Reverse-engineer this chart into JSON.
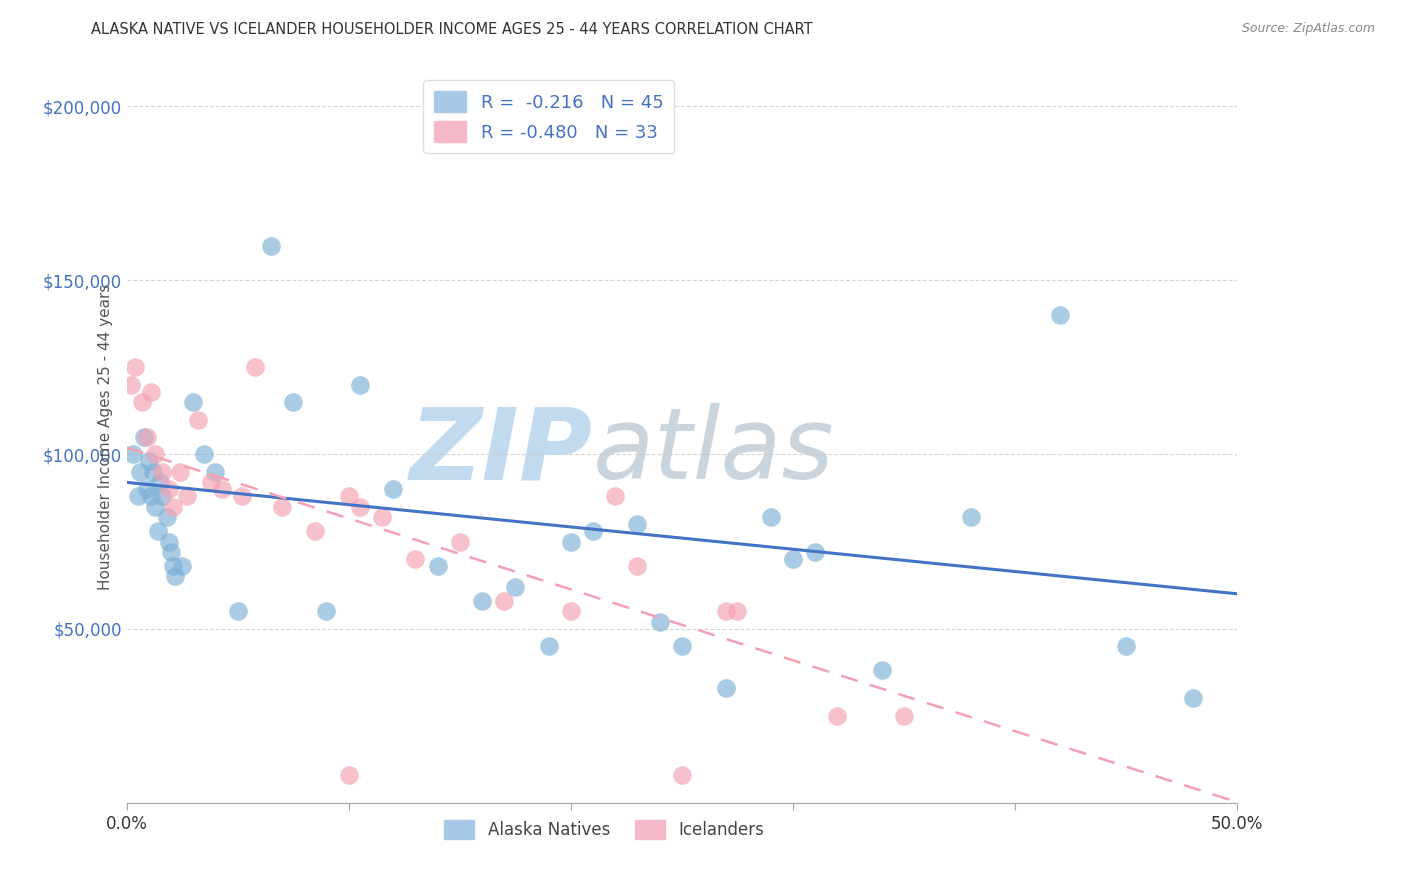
{
  "title": "ALASKA NATIVE VS ICELANDER HOUSEHOLDER INCOME AGES 25 - 44 YEARS CORRELATION CHART",
  "source": "Source: ZipAtlas.com",
  "ylabel": "Householder Income Ages 25 - 44 years",
  "xlim": [
    0,
    50
  ],
  "ylim": [
    0,
    210000
  ],
  "yticks": [
    0,
    50000,
    100000,
    150000,
    200000
  ],
  "xticks": [
    0,
    10,
    20,
    30,
    40,
    50
  ],
  "xtick_labels": [
    "0.0%",
    "",
    "",
    "",
    "",
    "50.0%"
  ],
  "alaska_natives": {
    "color": "#7bafd4",
    "x": [
      0.3,
      0.5,
      0.6,
      0.8,
      0.9,
      1.0,
      1.1,
      1.2,
      1.3,
      1.4,
      1.5,
      1.6,
      1.8,
      1.9,
      2.0,
      2.1,
      2.2,
      2.5,
      3.0,
      3.5,
      4.0,
      5.0,
      6.5,
      7.5,
      9.0,
      10.5,
      12.0,
      14.0,
      16.0,
      17.5,
      19.0,
      21.0,
      23.0,
      25.0,
      27.0,
      29.0,
      31.0,
      34.0,
      38.0,
      42.0,
      45.0,
      48.0,
      20.0,
      24.0,
      30.0
    ],
    "y": [
      100000,
      88000,
      95000,
      105000,
      90000,
      98000,
      88000,
      95000,
      85000,
      78000,
      92000,
      88000,
      82000,
      75000,
      72000,
      68000,
      65000,
      68000,
      115000,
      100000,
      95000,
      55000,
      160000,
      115000,
      55000,
      120000,
      90000,
      68000,
      58000,
      62000,
      45000,
      78000,
      80000,
      45000,
      33000,
      82000,
      72000,
      38000,
      82000,
      140000,
      45000,
      30000,
      75000,
      52000,
      70000
    ]
  },
  "icelanders": {
    "color": "#f4a0b0",
    "x": [
      0.2,
      0.4,
      0.7,
      0.9,
      1.1,
      1.3,
      1.6,
      1.9,
      2.1,
      2.4,
      2.7,
      3.2,
      3.8,
      4.3,
      5.2,
      5.8,
      7.0,
      8.5,
      10.0,
      11.5,
      13.0,
      15.0,
      17.0,
      20.0,
      23.0,
      27.0,
      32.0,
      22.0,
      10.5,
      27.5,
      35.0,
      25.0,
      10.0
    ],
    "y": [
      120000,
      125000,
      115000,
      105000,
      118000,
      100000,
      95000,
      90000,
      85000,
      95000,
      88000,
      110000,
      92000,
      90000,
      88000,
      125000,
      85000,
      78000,
      88000,
      82000,
      70000,
      75000,
      58000,
      55000,
      68000,
      55000,
      25000,
      88000,
      85000,
      55000,
      25000,
      8000,
      8000
    ]
  },
  "blue_line": {
    "x": [
      0,
      50
    ],
    "y": [
      92000,
      60000
    ]
  },
  "pink_line": {
    "x": [
      0,
      55
    ],
    "y": [
      102000,
      -10000
    ]
  },
  "background_color": "#ffffff",
  "grid_color": "#cccccc",
  "blue_color": "#4472c4",
  "watermark_zip": "ZIP",
  "watermark_atlas": "atlas",
  "watermark_color_zip": "#c5ddf0",
  "watermark_color_atlas": "#c8dde8"
}
